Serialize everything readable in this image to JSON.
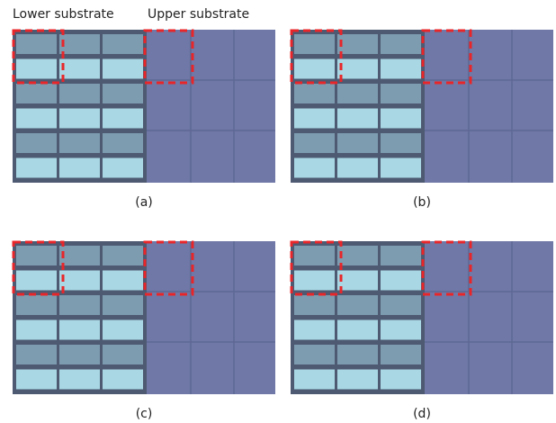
{
  "header": {
    "lower_label": "Lower substrate",
    "upper_label": "Upper substrate"
  },
  "panels": [
    {
      "label": "(a)"
    },
    {
      "label": "(b)"
    },
    {
      "label": "(c)"
    },
    {
      "label": "(d)"
    }
  ]
}
